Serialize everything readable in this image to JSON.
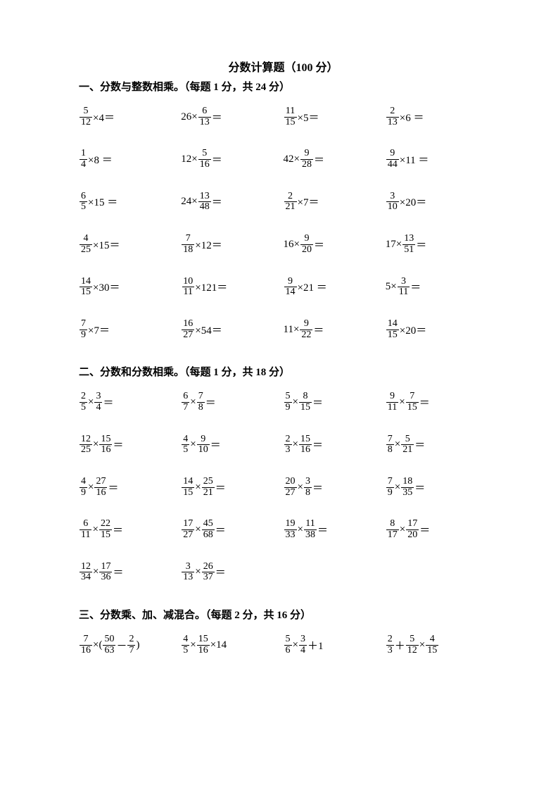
{
  "title": "分数计算题（100 分）",
  "sections": [
    {
      "header": "一、分数与整数相乘。（每题 1 分，共 24 分）",
      "rows": [
        [
          [
            {
              "t": "frac",
              "n": "5",
              "d": "12"
            },
            {
              "t": "txt",
              "v": " ×4＝"
            }
          ],
          [
            {
              "t": "txt",
              "v": "26×"
            },
            {
              "t": "frac",
              "n": "6",
              "d": "13"
            },
            {
              "t": "txt",
              "v": " ＝"
            }
          ],
          [
            {
              "t": "frac",
              "n": "11",
              "d": "15"
            },
            {
              "t": "txt",
              "v": " ×5＝"
            }
          ],
          [
            {
              "t": "frac",
              "n": "2",
              "d": "13"
            },
            {
              "t": "txt",
              "v": " ×6  ＝"
            }
          ]
        ],
        [
          [
            {
              "t": "frac",
              "n": "1",
              "d": "4"
            },
            {
              "t": "txt",
              "v": " ×8  ＝"
            }
          ],
          [
            {
              "t": "txt",
              "v": "12×"
            },
            {
              "t": "frac",
              "n": "5",
              "d": "16"
            },
            {
              "t": "txt",
              "v": "   ＝"
            }
          ],
          [
            {
              "t": "txt",
              "v": "42×"
            },
            {
              "t": "frac",
              "n": "9",
              "d": "28"
            },
            {
              "t": "txt",
              "v": " ＝"
            }
          ],
          [
            {
              "t": "frac",
              "n": "9",
              "d": "44"
            },
            {
              "t": "txt",
              "v": " ×11  ＝"
            }
          ]
        ],
        [
          [
            {
              "t": "frac",
              "n": "6",
              "d": "5"
            },
            {
              "t": "txt",
              "v": " ×15  ＝"
            }
          ],
          [
            {
              "t": "txt",
              "v": "24×"
            },
            {
              "t": "frac",
              "n": "13",
              "d": "48"
            },
            {
              "t": "txt",
              "v": " ＝"
            }
          ],
          [
            {
              "t": "frac",
              "n": "2",
              "d": "21"
            },
            {
              "t": "txt",
              "v": " ×7＝"
            }
          ],
          [
            {
              "t": "frac",
              "n": "3",
              "d": "10"
            },
            {
              "t": "txt",
              "v": " ×20＝"
            }
          ]
        ],
        [
          [
            {
              "t": "frac",
              "n": "4",
              "d": "25"
            },
            {
              "t": "txt",
              "v": " ×15＝"
            }
          ],
          [
            {
              "t": "frac",
              "n": "7",
              "d": "18"
            },
            {
              "t": "txt",
              "v": " ×12＝"
            }
          ],
          [
            {
              "t": "txt",
              "v": "16×"
            },
            {
              "t": "frac",
              "n": "9",
              "d": "20"
            },
            {
              "t": "txt",
              "v": " ＝"
            }
          ],
          [
            {
              "t": "txt",
              "v": "17×"
            },
            {
              "t": "frac",
              "n": "13",
              "d": "51"
            },
            {
              "t": "txt",
              "v": " ＝"
            }
          ]
        ],
        [
          [
            {
              "t": "frac",
              "n": "14",
              "d": "15"
            },
            {
              "t": "txt",
              "v": " ×30＝"
            }
          ],
          [
            {
              "t": "frac",
              "n": "10",
              "d": "11"
            },
            {
              "t": "txt",
              "v": " ×121＝"
            }
          ],
          [
            {
              "t": "frac",
              "n": "9",
              "d": "14"
            },
            {
              "t": "txt",
              "v": " ×21  ＝"
            }
          ],
          [
            {
              "t": "txt",
              "v": "5×"
            },
            {
              "t": "frac",
              "n": "3",
              "d": "11"
            },
            {
              "t": "txt",
              "v": " ＝"
            }
          ]
        ],
        [
          [
            {
              "t": "frac",
              "n": "7",
              "d": "9"
            },
            {
              "t": "txt",
              "v": " ×7＝"
            }
          ],
          [
            {
              "t": "frac",
              "n": "16",
              "d": "27"
            },
            {
              "t": "txt",
              "v": " ×54＝"
            }
          ],
          [
            {
              "t": "txt",
              "v": "11×"
            },
            {
              "t": "frac",
              "n": "9",
              "d": "22"
            },
            {
              "t": "txt",
              "v": " ＝"
            }
          ],
          [
            {
              "t": "frac",
              "n": "14",
              "d": "15"
            },
            {
              "t": "txt",
              "v": " ×20＝"
            }
          ]
        ]
      ]
    },
    {
      "header": "二、分数和分数相乘。（每题 1 分，共 18 分）",
      "rows": [
        [
          [
            {
              "t": "frac",
              "n": "2",
              "d": "5"
            },
            {
              "t": "txt",
              "v": " ×"
            },
            {
              "t": "frac",
              "n": "3",
              "d": "4"
            },
            {
              "t": "txt",
              "v": " ＝"
            }
          ],
          [
            {
              "t": "frac",
              "n": "6",
              "d": "7"
            },
            {
              "t": "txt",
              "v": " ×"
            },
            {
              "t": "frac",
              "n": "7",
              "d": "8"
            },
            {
              "t": "txt",
              "v": " ＝"
            }
          ],
          [
            {
              "t": "frac",
              "n": "5",
              "d": "9"
            },
            {
              "t": "txt",
              "v": " ×"
            },
            {
              "t": "frac",
              "n": "8",
              "d": "15"
            },
            {
              "t": "txt",
              "v": " ＝"
            }
          ],
          [
            {
              "t": "frac",
              "n": "9",
              "d": "11"
            },
            {
              "t": "txt",
              "v": " ×"
            },
            {
              "t": "frac",
              "n": "7",
              "d": "15"
            },
            {
              "t": "txt",
              "v": " ＝"
            }
          ]
        ],
        [
          [
            {
              "t": "frac",
              "n": "12",
              "d": "25"
            },
            {
              "t": "txt",
              "v": " ×"
            },
            {
              "t": "frac",
              "n": "15",
              "d": "16"
            },
            {
              "t": "txt",
              "v": " ＝"
            }
          ],
          [
            {
              "t": "frac",
              "n": "4",
              "d": "5"
            },
            {
              "t": "txt",
              "v": " ×"
            },
            {
              "t": "frac",
              "n": "9",
              "d": "10"
            },
            {
              "t": "txt",
              "v": " ＝"
            }
          ],
          [
            {
              "t": "frac",
              "n": "2",
              "d": "3"
            },
            {
              "t": "txt",
              "v": " ×"
            },
            {
              "t": "frac",
              "n": "15",
              "d": "16"
            },
            {
              "t": "txt",
              "v": " ＝"
            }
          ],
          [
            {
              "t": "frac",
              "n": "7",
              "d": "8"
            },
            {
              "t": "txt",
              "v": " ×"
            },
            {
              "t": "frac",
              "n": "5",
              "d": "21"
            },
            {
              "t": "txt",
              "v": " ＝"
            }
          ]
        ],
        [
          [
            {
              "t": "frac",
              "n": "4",
              "d": "9"
            },
            {
              "t": "txt",
              "v": " ×"
            },
            {
              "t": "frac",
              "n": "27",
              "d": "16"
            },
            {
              "t": "txt",
              "v": " ＝"
            }
          ],
          [
            {
              "t": "frac",
              "n": "14",
              "d": "15"
            },
            {
              "t": "txt",
              "v": " ×"
            },
            {
              "t": "frac",
              "n": "25",
              "d": "21"
            },
            {
              "t": "txt",
              "v": " ＝"
            }
          ],
          [
            {
              "t": "frac",
              "n": "20",
              "d": "27"
            },
            {
              "t": "txt",
              "v": " ×"
            },
            {
              "t": "frac",
              "n": "3",
              "d": "8"
            },
            {
              "t": "txt",
              "v": " ＝"
            }
          ],
          [
            {
              "t": "frac",
              "n": "7",
              "d": "9"
            },
            {
              "t": "txt",
              "v": " ×"
            },
            {
              "t": "frac",
              "n": "18",
              "d": "35"
            },
            {
              "t": "txt",
              "v": " ＝"
            }
          ]
        ],
        [
          [
            {
              "t": "frac",
              "n": "6",
              "d": "11"
            },
            {
              "t": "txt",
              "v": " ×"
            },
            {
              "t": "frac",
              "n": "22",
              "d": "15"
            },
            {
              "t": "txt",
              "v": " ＝"
            }
          ],
          [
            {
              "t": "frac",
              "n": "17",
              "d": "27"
            },
            {
              "t": "txt",
              "v": " ×"
            },
            {
              "t": "frac",
              "n": "45",
              "d": "68"
            },
            {
              "t": "txt",
              "v": " ＝"
            }
          ],
          [
            {
              "t": "frac",
              "n": "19",
              "d": "33"
            },
            {
              "t": "txt",
              "v": " ×"
            },
            {
              "t": "frac",
              "n": "11",
              "d": "38"
            },
            {
              "t": "txt",
              "v": " ＝"
            }
          ],
          [
            {
              "t": "frac",
              "n": "8",
              "d": "17"
            },
            {
              "t": "txt",
              "v": " ×"
            },
            {
              "t": "frac",
              "n": "17",
              "d": "20"
            },
            {
              "t": "txt",
              "v": " ＝"
            }
          ]
        ],
        [
          [
            {
              "t": "frac",
              "n": "12",
              "d": "34"
            },
            {
              "t": "txt",
              "v": " ×"
            },
            {
              "t": "frac",
              "n": "17",
              "d": "36"
            },
            {
              "t": "txt",
              "v": " ＝"
            }
          ],
          [
            {
              "t": "frac",
              "n": "3",
              "d": "13"
            },
            {
              "t": "txt",
              "v": " ×"
            },
            {
              "t": "frac",
              "n": "26",
              "d": "37"
            },
            {
              "t": "txt",
              "v": " ＝"
            }
          ],
          [],
          []
        ]
      ]
    },
    {
      "header": "三、分数乘、加、减混合。（每题 2 分，共 16 分）",
      "rows": [
        [
          [
            {
              "t": "frac",
              "n": "7",
              "d": "16"
            },
            {
              "t": "txt",
              "v": " ×("
            },
            {
              "t": "frac",
              "n": "50",
              "d": "63"
            },
            {
              "t": "txt",
              "v": " －"
            },
            {
              "t": "frac",
              "n": "2",
              "d": "7"
            },
            {
              "t": "txt",
              "v": " )"
            }
          ],
          [
            {
              "t": "frac",
              "n": "4",
              "d": "5"
            },
            {
              "t": "txt",
              "v": " ×"
            },
            {
              "t": "frac",
              "n": "15",
              "d": "16"
            },
            {
              "t": "txt",
              "v": " ×14"
            }
          ],
          [
            {
              "t": "frac",
              "n": "5",
              "d": "6"
            },
            {
              "t": "txt",
              "v": " ×"
            },
            {
              "t": "frac",
              "n": "3",
              "d": "4"
            },
            {
              "t": "txt",
              "v": " ＋1"
            }
          ],
          [
            {
              "t": "frac",
              "n": "2",
              "d": "3"
            },
            {
              "t": "txt",
              "v": " ＋"
            },
            {
              "t": "frac",
              "n": "5",
              "d": "12"
            },
            {
              "t": "txt",
              "v": " ×"
            },
            {
              "t": "frac",
              "n": "4",
              "d": "15"
            }
          ]
        ]
      ]
    }
  ]
}
